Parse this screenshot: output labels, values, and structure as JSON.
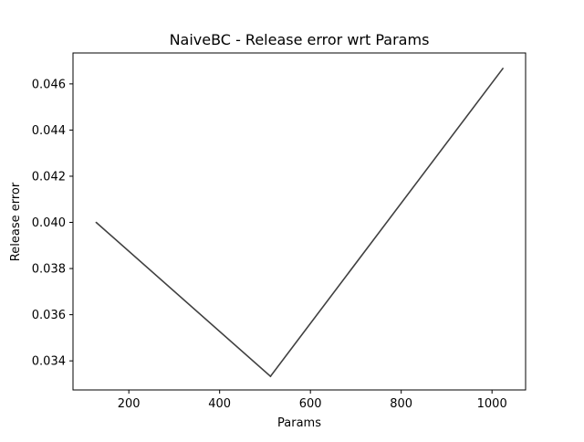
{
  "chart_data": {
    "type": "line",
    "title": "NaiveBC - Release error wrt Params",
    "xlabel": "Params",
    "ylabel": "Release error",
    "xlim": [
      77,
      1074
    ],
    "ylim": [
      0.03274,
      0.04734
    ],
    "xticks": [
      200,
      400,
      600,
      800,
      1000
    ],
    "xtick_labels": [
      "200",
      "400",
      "600",
      "800",
      "1000"
    ],
    "yticks": [
      0.034,
      0.036,
      0.038,
      0.04,
      0.042,
      0.044,
      0.046
    ],
    "ytick_labels": [
      "0.034",
      "0.036",
      "0.038",
      "0.040",
      "0.042",
      "0.044",
      "0.046"
    ],
    "grid": false,
    "series": [
      {
        "x": [
          128,
          512,
          1024
        ],
        "y": [
          0.04,
          0.03333,
          0.04667
        ],
        "color": "#404040"
      }
    ]
  }
}
